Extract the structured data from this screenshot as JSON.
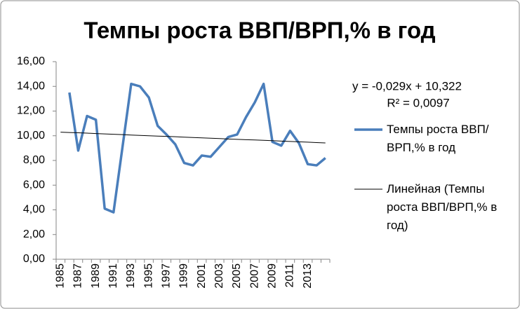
{
  "chart_data": {
    "type": "line",
    "title": "Темпы роста ВВП/ВРП,% в год",
    "categories": [
      "1985",
      null,
      "1987",
      null,
      "1989",
      null,
      "1991",
      null,
      "1993",
      null,
      "1995",
      null,
      "1997",
      null,
      "1999",
      null,
      "2001",
      null,
      "2003",
      null,
      "2005",
      null,
      "2007",
      null,
      "2009",
      null,
      "2011",
      null,
      "2013",
      null,
      null
    ],
    "series": [
      {
        "name": "Темпы роста ВВП/ВРП,% в год",
        "color": "#4a7ebb",
        "values": [
          null,
          13.5,
          8.8,
          11.6,
          11.3,
          4.1,
          3.8,
          9.0,
          14.2,
          14.0,
          13.1,
          10.8,
          10.1,
          9.3,
          7.8,
          7.6,
          8.4,
          8.3,
          9.1,
          9.9,
          10.1,
          11.5,
          12.7,
          14.2,
          9.5,
          9.2,
          10.4,
          9.4,
          7.7,
          7.6,
          8.2
        ]
      },
      {
        "name": "Линейная (Темпы роста ВВП/ВРП,% в год)",
        "color": "#000000",
        "values": [
          10.29,
          10.26,
          10.24,
          10.21,
          10.18,
          10.15,
          10.12,
          10.09,
          10.06,
          10.03,
          10.0,
          9.97,
          9.95,
          9.92,
          9.89,
          9.86,
          9.83,
          9.8,
          9.77,
          9.74,
          9.71,
          9.68,
          9.66,
          9.63,
          9.6,
          9.57,
          9.54,
          9.51,
          9.48,
          9.45,
          9.42
        ]
      }
    ],
    "trendline_equation": "y = -0,029x + 10,322",
    "trendline_r2": "R² = 0,0097",
    "ylim": [
      0,
      16
    ],
    "yticks": [
      {
        "value": 0,
        "label": "0,00"
      },
      {
        "value": 2,
        "label": "2,00"
      },
      {
        "value": 4,
        "label": "4,00"
      },
      {
        "value": 6,
        "label": "6,00"
      },
      {
        "value": 8,
        "label": "8,00"
      },
      {
        "value": 10,
        "label": "10,00"
      },
      {
        "value": 12,
        "label": "12,00"
      },
      {
        "value": 14,
        "label": "14,00"
      },
      {
        "value": 16,
        "label": "16,00"
      }
    ],
    "grid": false,
    "legend": "right"
  }
}
